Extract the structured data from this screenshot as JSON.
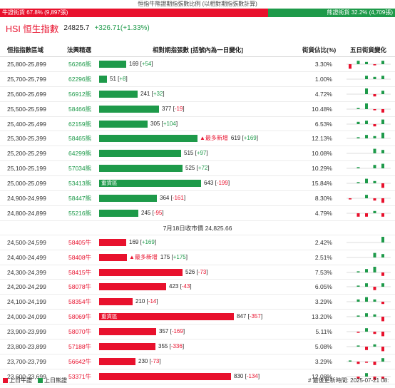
{
  "header": {
    "title": "恒指牛熊證期指張數比例 (以相對期指張數計算)",
    "bull_label": "牛證街貨 67.8% (9,897張)",
    "bear_label": "熊證街貨 32.2% (4,709張)",
    "bull_ratio": 0.678
  },
  "hsi": {
    "name": "HSI 恒生指數",
    "price": "24825.7",
    "change": "+326.71(+1.33%)"
  },
  "columns": {
    "range": "恒指指數區域",
    "legal": "法興精選",
    "dist": "相對期指張數 [括號內為一日變化]",
    "pct": "街貨佔比(%)",
    "trend": "五日街貨變化"
  },
  "bear_rows": [
    {
      "range": "25,800-25,899",
      "legal": "56266熊",
      "value": 169,
      "change": "+54",
      "pct": "3.30%",
      "trend": [
        -4,
        3,
        2,
        -1,
        3
      ]
    },
    {
      "range": "25,700-25,799",
      "legal": "62296熊",
      "value": 51,
      "change": "+8",
      "pct": "1.00%",
      "trend": [
        0,
        0,
        3,
        2,
        3
      ]
    },
    {
      "range": "25,600-25,699",
      "legal": "56912熊",
      "value": 241,
      "change": "+32",
      "pct": "4.72%",
      "trend": [
        0,
        0,
        5,
        -2,
        3
      ]
    },
    {
      "range": "25,500-25,599",
      "legal": "58466熊",
      "value": 377,
      "change": "-19",
      "pct": "10.48%",
      "trend": [
        0,
        1,
        5,
        -1,
        -3
      ]
    },
    {
      "range": "25,400-25,499",
      "legal": "62159熊",
      "value": 305,
      "change": "+104",
      "pct": "6.53%",
      "trend": [
        0,
        2,
        3,
        -2,
        4
      ]
    },
    {
      "range": "25,300-25,399",
      "legal": "58465熊",
      "value": 619,
      "change": "+169",
      "pct": "12.13%",
      "trend": [
        0,
        1,
        3,
        2,
        5
      ],
      "new": "▲最多新增"
    },
    {
      "range": "25,200-25,299",
      "legal": "64299熊",
      "value": 515,
      "change": "+97",
      "pct": "10.08%",
      "trend": [
        0,
        0,
        0,
        4,
        3
      ]
    },
    {
      "range": "25,100-25,199",
      "legal": "57034熊",
      "value": 525,
      "change": "+72",
      "pct": "10.29%",
      "trend": [
        0,
        1,
        0,
        3,
        4
      ]
    },
    {
      "range": "25,000-25,099",
      "legal": "53413熊",
      "value": 643,
      "change": "-199",
      "pct": "15.84%",
      "trend": [
        0,
        1,
        4,
        2,
        -4
      ],
      "heavy": "重貨區"
    },
    {
      "range": "24,900-24,999",
      "legal": "58447熊",
      "value": 364,
      "change": "-161",
      "pct": "8.30%",
      "trend": [
        -1,
        0,
        3,
        -2,
        -4
      ]
    },
    {
      "range": "24,800-24,899",
      "legal": "55216熊",
      "value": 245,
      "change": "-95",
      "pct": "4.79%",
      "trend": [
        0,
        -3,
        -3,
        2,
        -3
      ]
    }
  ],
  "close_label": "7月18日收市價 24,825.66",
  "bull_rows": [
    {
      "range": "24,500-24,599",
      "legal": "58405牛",
      "value": 169,
      "change": "+169",
      "pct": "2.42%",
      "trend": [
        0,
        0,
        0,
        0,
        5
      ]
    },
    {
      "range": "24,400-24,499",
      "legal": "58408牛",
      "value": 175,
      "change": "+175",
      "pct": "2.51%",
      "trend": [
        0,
        0,
        0,
        4,
        3
      ],
      "new": "▲最多新增"
    },
    {
      "range": "24,300-24,399",
      "legal": "58415牛",
      "value": 526,
      "change": "-73",
      "pct": "7.53%",
      "trend": [
        0,
        1,
        3,
        5,
        -3
      ]
    },
    {
      "range": "24,200-24,299",
      "legal": "58078牛",
      "value": 423,
      "change": "-43",
      "pct": "6.05%",
      "trend": [
        0,
        1,
        3,
        -3,
        3
      ]
    },
    {
      "range": "24,100-24,199",
      "legal": "58354牛",
      "value": 210,
      "change": "-14",
      "pct": "3.29%",
      "trend": [
        0,
        2,
        4,
        2,
        -2
      ]
    },
    {
      "range": "24,000-24,099",
      "legal": "58069牛",
      "value": 847,
      "change": "-357",
      "pct": "13.20%",
      "trend": [
        0,
        1,
        3,
        2,
        -4
      ],
      "heavy": "重貨區"
    },
    {
      "range": "23,900-23,999",
      "legal": "58070牛",
      "value": 357,
      "change": "-169",
      "pct": "5.11%",
      "trend": [
        0,
        -1,
        3,
        -2,
        -4
      ]
    },
    {
      "range": "23,800-23,899",
      "legal": "57188牛",
      "value": 355,
      "change": "-336",
      "pct": "5.08%",
      "trend": [
        0,
        1,
        -3,
        2,
        -4
      ]
    },
    {
      "range": "23,700-23,799",
      "legal": "56642牛",
      "value": 230,
      "change": "-73",
      "pct": "3.29%",
      "trend": [
        1,
        -2,
        -1,
        -3,
        3
      ]
    },
    {
      "range": "23,600-23,699",
      "legal": "53371牛",
      "value": 830,
      "change": "-134",
      "pct": "12.08%",
      "trend": [
        0,
        -2,
        3,
        -3,
        -2
      ]
    }
  ],
  "footer": {
    "legend_bull": "上日牛證",
    "legend_bear": "上日熊證",
    "updated": "# 最後更新時間: 2025-07-21 08:"
  },
  "colors": {
    "bull": "#e8112d",
    "bear": "#1e9a4a"
  },
  "max_value": 847
}
